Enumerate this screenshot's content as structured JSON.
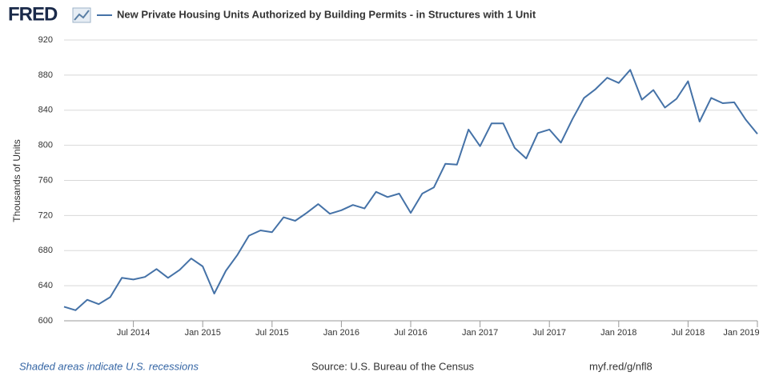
{
  "brand": "FRED",
  "chart_data": {
    "type": "line",
    "x": [
      "2014-01",
      "2014-02",
      "2014-03",
      "2014-04",
      "2014-05",
      "2014-06",
      "2014-07",
      "2014-08",
      "2014-09",
      "2014-10",
      "2014-11",
      "2014-12",
      "2015-01",
      "2015-02",
      "2015-03",
      "2015-04",
      "2015-05",
      "2015-06",
      "2015-07",
      "2015-08",
      "2015-09",
      "2015-10",
      "2015-11",
      "2015-12",
      "2016-01",
      "2016-02",
      "2016-03",
      "2016-04",
      "2016-05",
      "2016-06",
      "2016-07",
      "2016-08",
      "2016-09",
      "2016-10",
      "2016-11",
      "2016-12",
      "2017-01",
      "2017-02",
      "2017-03",
      "2017-04",
      "2017-05",
      "2017-06",
      "2017-07",
      "2017-08",
      "2017-09",
      "2017-10",
      "2017-11",
      "2017-12",
      "2018-01",
      "2018-02",
      "2018-03",
      "2018-04",
      "2018-05",
      "2018-06",
      "2018-07",
      "2018-08",
      "2018-09",
      "2018-10",
      "2018-11",
      "2018-12",
      "2019-01"
    ],
    "series": [
      {
        "name": "New Private Housing Units Authorized by Building Permits - in Structures with 1 Unit",
        "color": "#4572a7",
        "values": [
          616,
          612,
          624,
          619,
          627,
          649,
          647,
          650,
          659,
          649,
          658,
          671,
          662,
          631,
          657,
          675,
          697,
          703,
          701,
          718,
          714,
          723,
          733,
          722,
          726,
          732,
          728,
          747,
          741,
          745,
          723,
          745,
          752,
          779,
          778,
          818,
          799,
          825,
          825,
          797,
          785,
          814,
          818,
          803,
          830,
          854,
          864,
          877,
          871,
          886,
          852,
          863,
          843,
          853,
          873,
          827,
          854,
          848,
          849,
          829,
          813
        ]
      }
    ],
    "y_label": "Thousands of Units",
    "xlim": [
      "2014-01",
      "2019-01"
    ],
    "xticks": [
      {
        "value": "2014-07",
        "label": "Jul 2014"
      },
      {
        "value": "2015-01",
        "label": "Jan 2015"
      },
      {
        "value": "2015-07",
        "label": "Jul 2015"
      },
      {
        "value": "2016-01",
        "label": "Jan 2016"
      },
      {
        "value": "2016-07",
        "label": "Jul 2016"
      },
      {
        "value": "2017-01",
        "label": "Jan 2017"
      },
      {
        "value": "2017-07",
        "label": "Jul 2017"
      },
      {
        "value": "2018-01",
        "label": "Jan 2018"
      },
      {
        "value": "2018-07",
        "label": "Jul 2018"
      },
      {
        "value": "2019-01",
        "label": "Jan 2019"
      }
    ],
    "ylim": [
      600,
      920
    ],
    "yticks": [
      600,
      640,
      680,
      720,
      760,
      800,
      840,
      880,
      920
    ],
    "grid": true
  },
  "footer": {
    "recessions": "Shaded areas indicate U.S. recessions",
    "source": "Source: U.S. Bureau of the Census",
    "link": "myf.red/g/nfl8"
  }
}
